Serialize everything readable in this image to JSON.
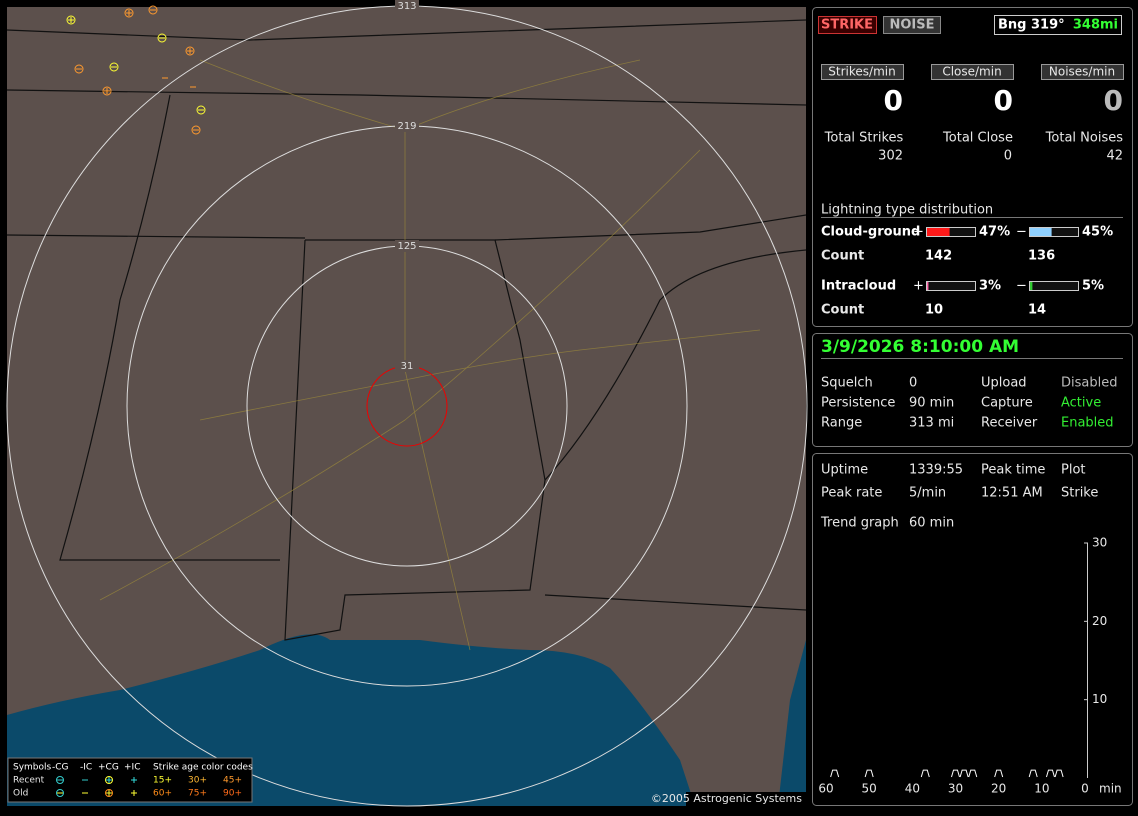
{
  "map": {
    "ring_labels": [
      "313",
      "219",
      "125",
      "31"
    ],
    "copyright": "©2005 Astrogenic Systems",
    "legend": {
      "header": [
        "Symbols",
        "-CG",
        "-IC",
        "+CG",
        "+IC",
        "Strike age color codes"
      ],
      "rows": [
        {
          "label": "Recent",
          "ages": [
            "15+",
            "30+",
            "45+"
          ],
          "colors": [
            "#ffff33",
            "#ffb833",
            "#ff9a2e"
          ]
        },
        {
          "label": "Old",
          "ages": [
            "60+",
            "75+",
            "90+"
          ],
          "colors": [
            "#ff8c1a",
            "#ff7a1a",
            "#ff6a1a"
          ]
        }
      ]
    }
  },
  "status": {
    "strike": "STRIKE",
    "noise": "NOISE",
    "bearing": "Bng 319°",
    "distance": "348mi"
  },
  "rates": [
    {
      "label": "Strikes/min",
      "value": 0,
      "total_label": "Total Strikes",
      "total": 302
    },
    {
      "label": "Close/min",
      "value": 0,
      "total_label": "Total Close",
      "total": 0
    },
    {
      "label": "Noises/min",
      "value": 0,
      "total_label": "Total Noises",
      "total": 42
    }
  ],
  "distribution": {
    "title": "Lightning type distribution",
    "rows": [
      {
        "type": "Cloud-ground",
        "pos_sign": "+",
        "pos": {
          "value": 47,
          "label": "47%"
        },
        "pos_color": "#ff1a1a",
        "neg_sign": "−",
        "neg": {
          "value": 45,
          "label": "45%"
        },
        "neg_color": "#8fd0ff",
        "count_label": "Count",
        "pos_count": 142,
        "neg_count": 136
      },
      {
        "type": "Intracloud",
        "pos_sign": "+",
        "pos": {
          "value": 3,
          "label": "3%"
        },
        "pos_color": "#ff66aa",
        "neg_sign": "−",
        "neg": {
          "value": 5,
          "label": "5%"
        },
        "neg_color": "#33cc33",
        "count_label": "Count",
        "pos_count": 10,
        "neg_count": 14
      }
    ]
  },
  "datetime": "3/9/2026 8:10:00 AM",
  "settings": [
    [
      "Squelch",
      0,
      "Upload",
      "Disabled"
    ],
    [
      "Persistence",
      "90 min",
      "Capture",
      "Active"
    ],
    [
      "Range",
      "313 mi",
      "Receiver",
      "Enabled"
    ]
  ],
  "stats": [
    [
      "Uptime",
      "1339:55",
      "Peak time",
      "Plot"
    ],
    [
      "Peak rate",
      "5/min",
      "12:51 AM",
      "Strike"
    ]
  ],
  "trend_label": [
    "Trend graph",
    "60 min"
  ],
  "trend": {
    "ylim": [
      0,
      30
    ],
    "yticks": [
      10,
      20,
      30
    ],
    "xlim": [
      60,
      0
    ],
    "xticks": [
      60,
      50,
      40,
      30,
      20,
      10,
      0
    ],
    "x_unit": "min",
    "x": [
      58,
      50,
      37,
      30,
      28,
      26,
      20,
      12,
      8,
      6
    ],
    "values": [
      1,
      1,
      1,
      1,
      1,
      1,
      1,
      1,
      1,
      1
    ]
  }
}
